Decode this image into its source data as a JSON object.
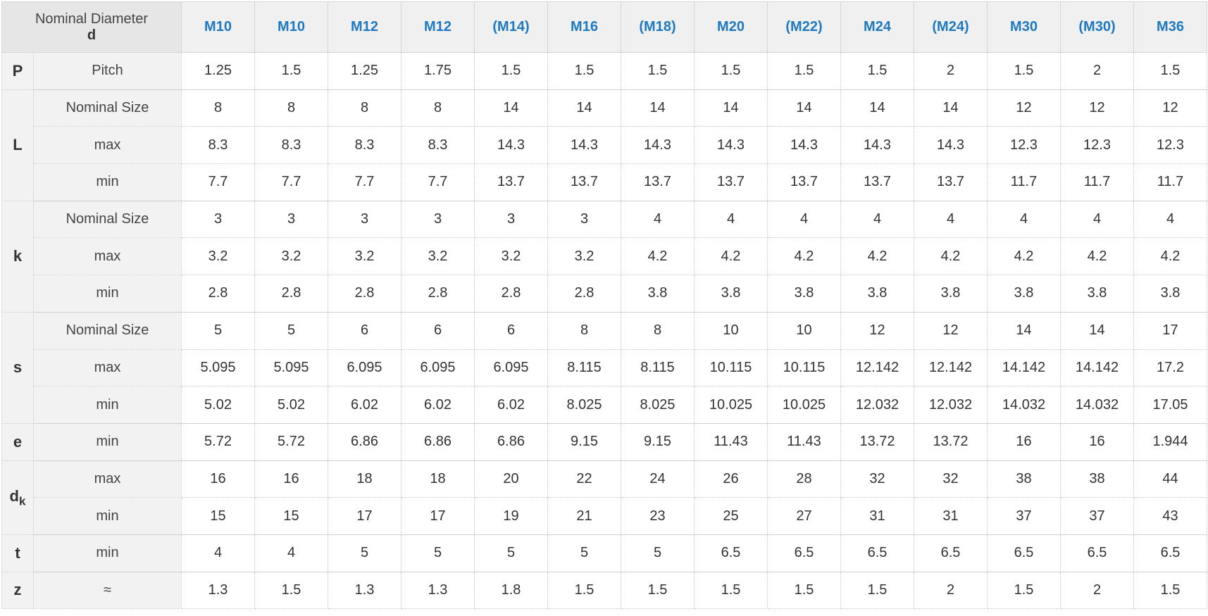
{
  "header": {
    "corner_label": "Nominal Diameter",
    "corner_symbol": "d",
    "sizes": [
      "M10",
      "M10",
      "M12",
      "M12",
      "(M14)",
      "M16",
      "(M18)",
      "M20",
      "(M22)",
      "M24",
      "(M24)",
      "M30",
      "(M30)",
      "M36"
    ]
  },
  "rows": [
    {
      "symbol": "P",
      "label": "Pitch",
      "values": [
        "1.25",
        "1.5",
        "1.25",
        "1.75",
        "1.5",
        "1.5",
        "1.5",
        "1.5",
        "1.5",
        "1.5",
        "2",
        "1.5",
        "2",
        "1.5"
      ]
    },
    {
      "symbol": "L",
      "label": "Nominal Size",
      "values": [
        "8",
        "8",
        "8",
        "8",
        "14",
        "14",
        "14",
        "14",
        "14",
        "14",
        "14",
        "12",
        "12",
        "12"
      ]
    },
    {
      "symbol": "",
      "label": "max",
      "values": [
        "8.3",
        "8.3",
        "8.3",
        "8.3",
        "14.3",
        "14.3",
        "14.3",
        "14.3",
        "14.3",
        "14.3",
        "14.3",
        "12.3",
        "12.3",
        "12.3"
      ]
    },
    {
      "symbol": "",
      "label": "min",
      "values": [
        "7.7",
        "7.7",
        "7.7",
        "7.7",
        "13.7",
        "13.7",
        "13.7",
        "13.7",
        "13.7",
        "13.7",
        "13.7",
        "11.7",
        "11.7",
        "11.7"
      ]
    },
    {
      "symbol": "k",
      "label": "Nominal Size",
      "values": [
        "3",
        "3",
        "3",
        "3",
        "3",
        "3",
        "4",
        "4",
        "4",
        "4",
        "4",
        "4",
        "4",
        "4"
      ]
    },
    {
      "symbol": "",
      "label": "max",
      "values": [
        "3.2",
        "3.2",
        "3.2",
        "3.2",
        "3.2",
        "3.2",
        "4.2",
        "4.2",
        "4.2",
        "4.2",
        "4.2",
        "4.2",
        "4.2",
        "4.2"
      ]
    },
    {
      "symbol": "",
      "label": "min",
      "values": [
        "2.8",
        "2.8",
        "2.8",
        "2.8",
        "2.8",
        "2.8",
        "3.8",
        "3.8",
        "3.8",
        "3.8",
        "3.8",
        "3.8",
        "3.8",
        "3.8"
      ]
    },
    {
      "symbol": "s",
      "label": "Nominal Size",
      "values": [
        "5",
        "5",
        "6",
        "6",
        "6",
        "8",
        "8",
        "10",
        "10",
        "12",
        "12",
        "14",
        "14",
        "17"
      ]
    },
    {
      "symbol": "",
      "label": "max",
      "values": [
        "5.095",
        "5.095",
        "6.095",
        "6.095",
        "6.095",
        "8.115",
        "8.115",
        "10.115",
        "10.115",
        "12.142",
        "12.142",
        "14.142",
        "14.142",
        "17.2"
      ]
    },
    {
      "symbol": "",
      "label": "min",
      "values": [
        "5.02",
        "5.02",
        "6.02",
        "6.02",
        "6.02",
        "8.025",
        "8.025",
        "10.025",
        "10.025",
        "12.032",
        "12.032",
        "14.032",
        "14.032",
        "17.05"
      ]
    },
    {
      "symbol": "e",
      "label": "min",
      "values": [
        "5.72",
        "5.72",
        "6.86",
        "6.86",
        "6.86",
        "9.15",
        "9.15",
        "11.43",
        "11.43",
        "13.72",
        "13.72",
        "16",
        "16",
        "1.944"
      ]
    },
    {
      "symbol": "d",
      "symbol_sub": "k",
      "label": "max",
      "values": [
        "16",
        "16",
        "18",
        "18",
        "20",
        "22",
        "24",
        "26",
        "28",
        "32",
        "32",
        "38",
        "38",
        "44"
      ]
    },
    {
      "symbol": "",
      "label": "min",
      "values": [
        "15",
        "15",
        "17",
        "17",
        "19",
        "21",
        "23",
        "25",
        "27",
        "31",
        "31",
        "37",
        "37",
        "43"
      ]
    },
    {
      "symbol": "t",
      "label": "min",
      "values": [
        "4",
        "4",
        "5",
        "5",
        "5",
        "5",
        "5",
        "6.5",
        "6.5",
        "6.5",
        "6.5",
        "6.5",
        "6.5",
        "6.5"
      ]
    },
    {
      "symbol": "z",
      "label": "≈",
      "values": [
        "1.3",
        "1.5",
        "1.3",
        "1.3",
        "1.8",
        "1.5",
        "1.5",
        "1.5",
        "1.5",
        "1.5",
        "2",
        "1.5",
        "2",
        "1.5"
      ]
    }
  ],
  "colors": {
    "size_header": "#1f79c2",
    "label_bg": "#f2f2f2",
    "header_bg": "#f0f0f0",
    "grid": "#dedede"
  }
}
